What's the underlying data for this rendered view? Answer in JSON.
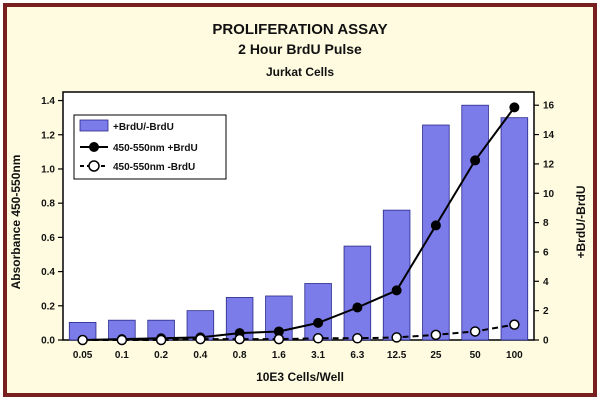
{
  "chart_data": {
    "type": "bar",
    "title": "PROLIFERATION ASSAY",
    "subtitle": "2 Hour BrdU Pulse",
    "subtitle2": "Jurkat Cells",
    "xlabel": "10E3 Cells/Well",
    "ylabel": "Absorbance 450-550nm",
    "y2label": "+BrdU/-BrdU",
    "categories": [
      "0.05",
      "0.1",
      "0.2",
      "0.4",
      "0.8",
      "1.6",
      "3.1",
      "6.3",
      "12.5",
      "25",
      "50",
      "100"
    ],
    "ylim": [
      0,
      1.45
    ],
    "y2lim": [
      0,
      16.9
    ],
    "yticks": [
      "0.0",
      "0.2",
      "0.4",
      "0.6",
      "0.8",
      "1.0",
      "1.2",
      "1.4"
    ],
    "y2ticks": [
      "0",
      "2",
      "4",
      "6",
      "8",
      "10",
      "12",
      "14",
      "16"
    ],
    "grid": false,
    "legend_position": "top-left",
    "series": [
      {
        "name": "+BrdU/-BrdU",
        "kind": "bar",
        "axis": "right",
        "color": "#7b7bea",
        "values": [
          1.2,
          1.35,
          1.35,
          2.0,
          2.9,
          3.0,
          3.85,
          6.4,
          8.85,
          14.65,
          16.0,
          15.15
        ]
      },
      {
        "name": "450-550nm +BrdU",
        "kind": "line-marker",
        "axis": "left",
        "marker": "filled-circle",
        "color": "#000000",
        "values": [
          0.0,
          0.005,
          0.01,
          0.015,
          0.04,
          0.05,
          0.1,
          0.19,
          0.29,
          0.67,
          1.05,
          1.36
        ]
      },
      {
        "name": "450-550nm -BrdU",
        "kind": "dashed-line-marker",
        "axis": "left",
        "marker": "open-circle",
        "color": "#000000",
        "values": [
          0.0,
          0.0,
          0.0,
          0.005,
          0.005,
          0.005,
          0.01,
          0.01,
          0.015,
          0.03,
          0.05,
          0.09
        ]
      }
    ]
  }
}
